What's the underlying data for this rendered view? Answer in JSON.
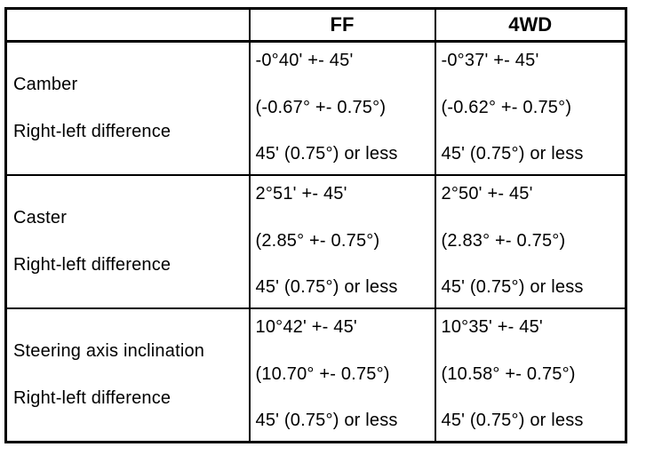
{
  "page": {
    "background": "#ffffff",
    "ink": "#000000"
  },
  "table": {
    "columns": [
      "",
      "FF",
      "4WD"
    ],
    "rows": [
      {
        "label_lines": [
          "Camber",
          "Right-left difference"
        ],
        "cells": {
          "ff": [
            "-0°40' +- 45'",
            "(-0.67° +- 0.75°)",
            "45' (0.75°) or less"
          ],
          "fourwd": [
            "-0°37' +- 45'",
            "(-0.62° +- 0.75°)",
            "45' (0.75°) or less"
          ]
        }
      },
      {
        "label_lines": [
          "Caster",
          "Right-left difference"
        ],
        "cells": {
          "ff": [
            "2°51' +- 45'",
            "(2.85° +- 0.75°)",
            "45' (0.75°) or less"
          ],
          "fourwd": [
            "2°50' +- 45'",
            "(2.83° +- 0.75°)",
            "45' (0.75°) or less"
          ]
        }
      },
      {
        "label_lines": [
          "Steering axis inclination",
          "Right-left difference"
        ],
        "cells": {
          "ff": [
            "10°42' +- 45'",
            "(10.70° +- 0.75°)",
            "45' (0.75°) or less"
          ],
          "fourwd": [
            "10°35' +- 45'",
            "(10.58° +- 0.75°)",
            "45' (0.75°) or less"
          ]
        }
      }
    ]
  }
}
